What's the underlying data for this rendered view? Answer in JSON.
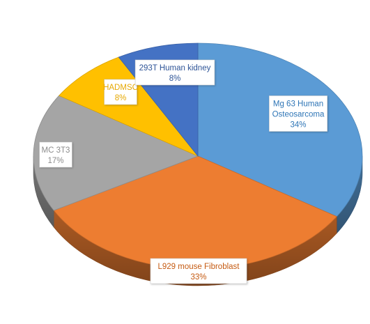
{
  "chart_data": {
    "type": "pie",
    "style": "3d",
    "title": "",
    "slices": [
      {
        "label": "Mg 63 Human Osteosarcoma",
        "label_lines": [
          "Mg 63 Human",
          "Osteosarcoma"
        ],
        "percent_label": "34%",
        "value": 34,
        "color": "#5b9bd5",
        "label_color": "#2e75b6"
      },
      {
        "label": "L929 mouse Fibroblast",
        "label_lines": [
          "L929 mouse Fibroblast"
        ],
        "percent_label": "33%",
        "value": 33,
        "color": "#ed7d31",
        "label_color": "#c55a11"
      },
      {
        "label": "MC 3T3",
        "label_lines": [
          "MC 3T3"
        ],
        "percent_label": "17%",
        "value": 17,
        "color": "#a5a5a5",
        "label_color": "#8c8c8c"
      },
      {
        "label": "HADMSC",
        "label_lines": [
          "HADMSC"
        ],
        "percent_label": "8%",
        "value": 8,
        "color": "#ffc000",
        "label_color": "#e6a800"
      },
      {
        "label": "293T Human kidney",
        "label_lines": [
          "293T Human kidney"
        ],
        "percent_label": "8%",
        "value": 8,
        "color": "#4472c4",
        "label_color": "#2f5597"
      }
    ],
    "legend": "none",
    "data_labels": "category-and-percent"
  }
}
